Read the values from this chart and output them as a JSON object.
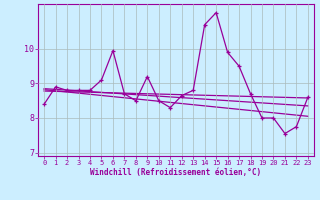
{
  "xlabel": "Windchill (Refroidissement éolien,°C)",
  "x_values": [
    0,
    1,
    2,
    3,
    4,
    5,
    6,
    7,
    8,
    9,
    10,
    11,
    12,
    13,
    14,
    15,
    16,
    17,
    18,
    19,
    20,
    21,
    22,
    23
  ],
  "line1": [
    8.4,
    8.9,
    8.8,
    8.8,
    8.8,
    9.1,
    9.95,
    8.7,
    8.5,
    9.2,
    8.5,
    8.3,
    8.65,
    8.8,
    10.7,
    11.05,
    9.9,
    9.5,
    8.7,
    8.0,
    8.0,
    7.55,
    7.75,
    8.6
  ],
  "trend_lines": [
    [
      8.85,
      8.35
    ],
    [
      8.82,
      8.05
    ],
    [
      8.78,
      8.58
    ]
  ],
  "ylim": [
    6.9,
    11.3
  ],
  "yticks": [
    7,
    8,
    9,
    10
  ],
  "xticks": [
    0,
    1,
    2,
    3,
    4,
    5,
    6,
    7,
    8,
    9,
    10,
    11,
    12,
    13,
    14,
    15,
    16,
    17,
    18,
    19,
    20,
    21,
    22,
    23
  ],
  "bg_color": "#cceeff",
  "line_color": "#990099",
  "grid_color": "#aabbbb",
  "marker": "+"
}
